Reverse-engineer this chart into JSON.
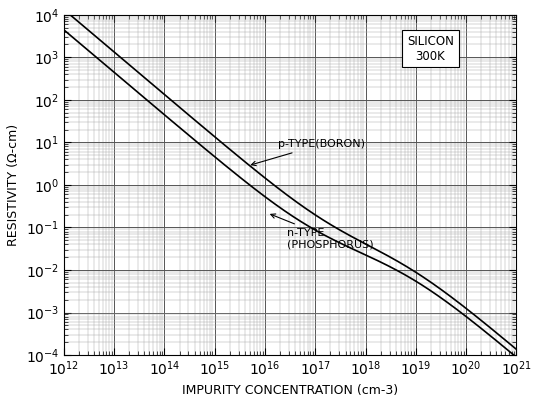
{
  "title": "",
  "xlabel": "IMPURITY CONCENTRATION (cm-3)",
  "ylabel": "RESISTIVITY (Ω-cm)",
  "annotation_silicon": "SILICON\n300K",
  "annotation_p": "p-TYPE(BORON)",
  "annotation_n": "n-TYPE\n(PHOSPHORUS)",
  "xlim": [
    1000000000000.0,
    1e+21
  ],
  "ylim": [
    0.0001,
    10000.0
  ],
  "background_color": "#ffffff",
  "line_color": "#000000"
}
